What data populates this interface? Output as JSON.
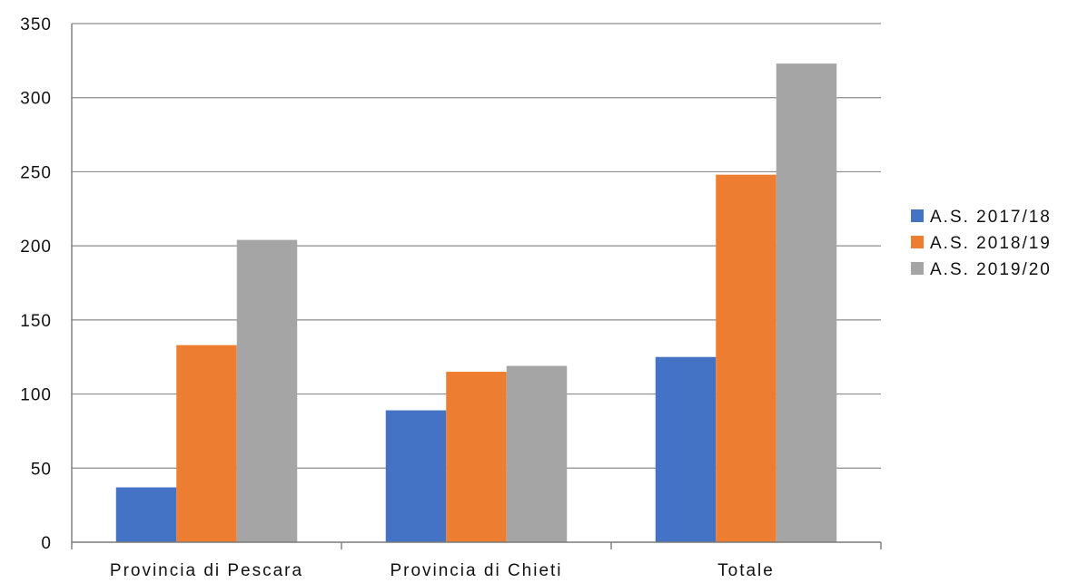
{
  "chart_data": {
    "type": "bar",
    "categories": [
      "Provincia di Pescara",
      "Provincia di Chieti",
      "Totale"
    ],
    "series": [
      {
        "name": "A.S. 2017/18",
        "color": "#4472c4",
        "values": [
          37,
          89,
          125
        ]
      },
      {
        "name": "A.S. 2018/19",
        "color": "#ed7d31",
        "values": [
          133,
          115,
          248
        ]
      },
      {
        "name": "A.S. 2019/20",
        "color": "#a5a5a5",
        "values": [
          204,
          119,
          323
        ]
      }
    ],
    "title": "",
    "xlabel": "",
    "ylabel": "",
    "ylim": [
      0,
      350
    ],
    "yticks": [
      0,
      50,
      100,
      150,
      200,
      250,
      300,
      350
    ],
    "grid": true,
    "legend_position": "right"
  }
}
